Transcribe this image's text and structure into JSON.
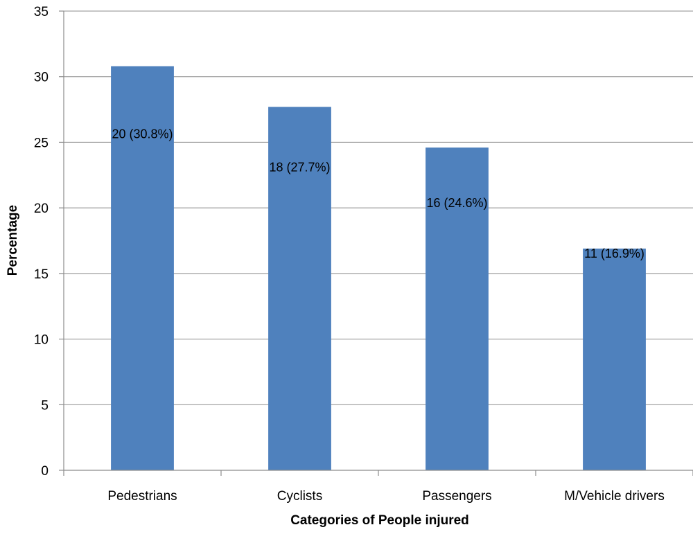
{
  "chart_data": {
    "type": "bar",
    "categories": [
      "Pedestrians",
      "Cyclists",
      "Passengers",
      "M/Vehicle drivers"
    ],
    "values": [
      30.8,
      27.7,
      24.6,
      16.9
    ],
    "data_labels": [
      "20 (30.8%)",
      "18 (27.7%)",
      "16 (24.6%)",
      "11 (16.9%)"
    ],
    "title": "",
    "xlabel": "Categories of People injured",
    "ylabel": "Percentage",
    "ylim": [
      0,
      35
    ],
    "yticks": [
      0,
      5,
      10,
      15,
      20,
      25,
      30,
      35
    ],
    "grid": true,
    "legend": "none",
    "bar_color": "#4f81bd"
  }
}
